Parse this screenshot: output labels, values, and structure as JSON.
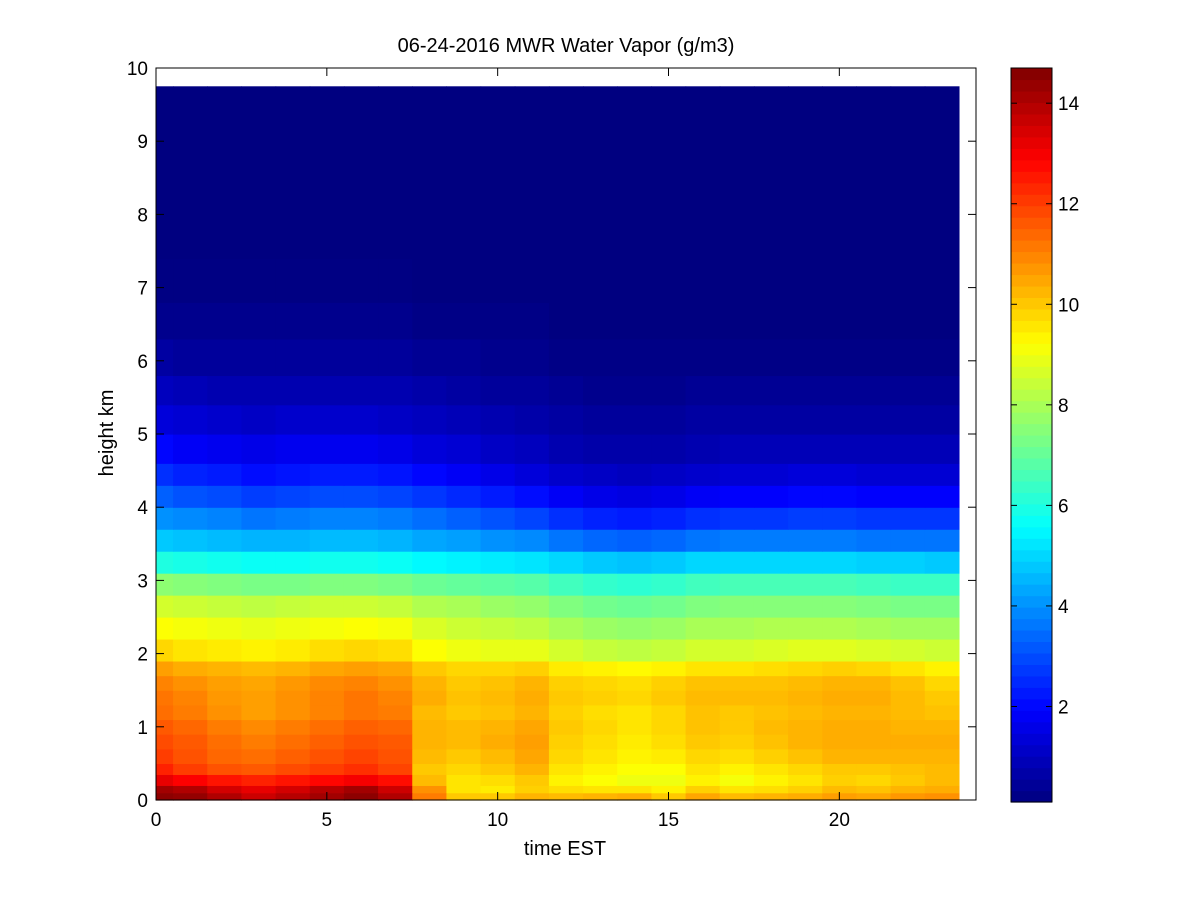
{
  "chart_data": {
    "type": "heatmap",
    "title": "06-24-2016 MWR Water Vapor (g/m3)",
    "xlabel": "time EST",
    "ylabel": "height km",
    "xlim": [
      0,
      24
    ],
    "ylim": [
      0,
      10
    ],
    "x_ticks": [
      0,
      5,
      10,
      15,
      20
    ],
    "y_ticks": [
      0,
      1,
      2,
      3,
      4,
      5,
      6,
      7,
      8,
      9,
      10
    ],
    "x_tick_labels": [
      "0",
      "5",
      "10",
      "15",
      "20"
    ],
    "y_tick_labels": [
      "0",
      "1",
      "2",
      "3",
      "4",
      "5",
      "6",
      "7",
      "8",
      "9",
      "10"
    ],
    "time_start_h": 0,
    "time_end_h": 23.5,
    "top_height_km": 9.75,
    "colormap": "jet",
    "colorbar": {
      "range": [
        0.1,
        14.7
      ],
      "ticks": [
        2,
        4,
        6,
        8,
        10,
        12,
        14
      ],
      "tick_labels": [
        "2",
        "4",
        "6",
        "8",
        "10",
        "12",
        "14"
      ],
      "placement": "right"
    },
    "x_times_h": [
      0.5,
      1.5,
      2.5,
      3.5,
      4.5,
      5.5,
      6.5,
      7.5,
      8.5,
      9.5,
      10.5,
      11.5,
      12.5,
      13.5,
      14.5,
      15.5,
      16.5,
      17.5,
      18.5,
      19.5,
      20.5,
      21.5,
      22.5,
      23.5
    ],
    "height_levels_km": [
      0,
      0.1,
      0.2,
      0.35,
      0.5,
      0.7,
      0.9,
      1.1,
      1.3,
      1.5,
      1.7,
      1.9,
      2.2,
      2.5,
      2.8,
      3.1,
      3.4,
      3.7,
      4.0,
      4.3,
      4.6,
      5.0,
      5.4,
      5.8,
      6.3,
      6.8,
      7.4,
      8.1,
      9.0,
      9.75
    ],
    "water_vapor_g_m3": [
      [
        14.5,
        14.4,
        14.0,
        13.6,
        13.9,
        14.2,
        14.5,
        14.0,
        11.1,
        10.0,
        10.0,
        10.3,
        10.2,
        10.3,
        10.4,
        10.0,
        10.5,
        10.2,
        10.3,
        10.4,
        10.6,
        10.5,
        10.7,
        10.8
      ],
      [
        14.2,
        14.0,
        13.5,
        13.2,
        13.5,
        13.9,
        14.2,
        13.6,
        10.8,
        9.6,
        9.5,
        9.9,
        9.7,
        9.6,
        9.6,
        9.4,
        9.9,
        9.6,
        9.7,
        9.9,
        10.2,
        10.1,
        10.3,
        10.4
      ],
      [
        13.2,
        12.9,
        12.6,
        12.4,
        12.6,
        12.8,
        13.0,
        12.7,
        10.2,
        9.6,
        9.7,
        10.0,
        9.4,
        9.2,
        9.0,
        9.0,
        9.4,
        9.1,
        9.4,
        9.6,
        9.9,
        9.8,
        10.0,
        10.2
      ],
      [
        12.4,
        12.0,
        11.7,
        11.6,
        11.8,
        12.0,
        12.2,
        11.9,
        10.0,
        9.8,
        10.0,
        10.3,
        9.6,
        9.4,
        9.2,
        9.2,
        9.6,
        9.4,
        9.6,
        9.8,
        10.0,
        10.0,
        10.1,
        10.2
      ],
      [
        12.0,
        11.7,
        11.4,
        11.3,
        11.5,
        11.7,
        11.9,
        11.7,
        10.2,
        10.0,
        10.2,
        10.5,
        9.8,
        9.6,
        9.4,
        9.5,
        9.8,
        9.7,
        9.9,
        10.1,
        10.3,
        10.3,
        10.3,
        10.3
      ],
      [
        11.8,
        11.6,
        11.3,
        11.1,
        11.3,
        11.5,
        11.7,
        11.6,
        10.3,
        10.2,
        10.4,
        10.6,
        9.9,
        9.7,
        9.5,
        9.7,
        10.0,
        9.9,
        10.1,
        10.3,
        10.4,
        10.4,
        10.4,
        10.4
      ],
      [
        11.6,
        11.4,
        11.1,
        10.9,
        11.1,
        11.3,
        11.5,
        11.4,
        10.3,
        10.2,
        10.3,
        10.5,
        10.0,
        9.8,
        9.6,
        9.8,
        10.1,
        10.0,
        10.2,
        10.3,
        10.4,
        10.4,
        10.3,
        10.3
      ],
      [
        11.3,
        11.1,
        10.8,
        10.6,
        10.8,
        11.0,
        11.2,
        11.1,
        10.2,
        10.0,
        10.1,
        10.3,
        9.9,
        9.7,
        9.6,
        9.8,
        10.1,
        10.0,
        10.1,
        10.2,
        10.3,
        10.3,
        10.2,
        10.1
      ],
      [
        11.2,
        11.0,
        10.7,
        10.6,
        10.8,
        11.0,
        11.2,
        11.0,
        10.4,
        10.1,
        10.2,
        10.4,
        10.0,
        9.9,
        9.8,
        10.0,
        10.2,
        10.2,
        10.2,
        10.3,
        10.4,
        10.4,
        10.2,
        10.0
      ],
      [
        11.0,
        10.8,
        10.6,
        10.5,
        10.7,
        10.9,
        11.0,
        10.8,
        10.3,
        10.0,
        10.1,
        10.3,
        9.9,
        9.8,
        9.7,
        9.9,
        10.1,
        10.1,
        10.1,
        10.2,
        10.3,
        10.3,
        10.1,
        9.8
      ],
      [
        10.6,
        10.4,
        10.3,
        10.2,
        10.3,
        10.5,
        10.6,
        10.5,
        10.0,
        9.8,
        9.8,
        9.9,
        9.5,
        9.4,
        9.3,
        9.4,
        9.6,
        9.6,
        9.7,
        9.8,
        9.9,
        9.8,
        9.6,
        9.4
      ],
      [
        9.8,
        9.6,
        9.5,
        9.4,
        9.5,
        9.7,
        9.8,
        9.7,
        9.2,
        9.0,
        8.9,
        8.9,
        8.6,
        8.4,
        8.3,
        8.4,
        8.6,
        8.6,
        8.7,
        8.8,
        8.8,
        8.7,
        8.6,
        8.5
      ],
      [
        9.2,
        9.1,
        9.0,
        8.9,
        9.0,
        9.1,
        9.2,
        9.1,
        8.7,
        8.5,
        8.4,
        8.3,
        8.0,
        7.8,
        7.7,
        7.8,
        8.0,
        8.0,
        8.1,
        8.1,
        8.1,
        8.0,
        7.9,
        7.9
      ],
      [
        8.6,
        8.5,
        8.4,
        8.3,
        8.4,
        8.5,
        8.5,
        8.4,
        8.1,
        8.0,
        7.8,
        7.7,
        7.4,
        7.2,
        7.1,
        7.2,
        7.4,
        7.5,
        7.5,
        7.5,
        7.5,
        7.4,
        7.3,
        7.3
      ],
      [
        7.6,
        7.5,
        7.4,
        7.3,
        7.3,
        7.4,
        7.4,
        7.3,
        7.1,
        7.0,
        6.9,
        6.8,
        6.5,
        6.3,
        6.2,
        6.3,
        6.5,
        6.6,
        6.6,
        6.6,
        6.6,
        6.5,
        6.4,
        6.4
      ],
      [
        6.0,
        5.9,
        5.8,
        5.7,
        5.7,
        5.8,
        5.8,
        5.7,
        5.5,
        5.4,
        5.3,
        5.2,
        5.0,
        4.8,
        4.7,
        4.8,
        5.0,
        5.0,
        5.0,
        5.0,
        5.0,
        4.9,
        4.9,
        4.8
      ],
      [
        4.8,
        4.7,
        4.6,
        4.5,
        4.5,
        4.6,
        4.6,
        4.5,
        4.3,
        4.2,
        4.0,
        3.9,
        3.6,
        3.4,
        3.3,
        3.4,
        3.6,
        3.7,
        3.7,
        3.7,
        3.7,
        3.6,
        3.6,
        3.6
      ],
      [
        4.0,
        3.9,
        3.8,
        3.6,
        3.7,
        3.8,
        3.8,
        3.7,
        3.5,
        3.3,
        3.1,
        2.9,
        2.6,
        2.4,
        2.3,
        2.4,
        2.6,
        2.7,
        2.7,
        2.8,
        2.8,
        2.7,
        2.7,
        2.7
      ],
      [
        3.3,
        3.1,
        3.0,
        2.8,
        2.9,
        3.0,
        3.0,
        2.9,
        2.7,
        2.5,
        2.3,
        2.1,
        1.8,
        1.6,
        1.5,
        1.6,
        1.8,
        1.9,
        1.9,
        2.0,
        2.0,
        1.9,
        1.9,
        1.9
      ],
      [
        2.6,
        2.4,
        2.3,
        2.1,
        2.2,
        2.3,
        2.3,
        2.2,
        2.0,
        1.8,
        1.6,
        1.4,
        1.2,
        1.1,
        1.0,
        1.1,
        1.2,
        1.3,
        1.3,
        1.4,
        1.4,
        1.3,
        1.3,
        1.3
      ],
      [
        2.0,
        1.8,
        1.7,
        1.6,
        1.7,
        1.7,
        1.7,
        1.6,
        1.4,
        1.3,
        1.1,
        1.0,
        0.8,
        0.7,
        0.7,
        0.7,
        0.8,
        0.9,
        0.9,
        0.9,
        0.9,
        0.9,
        0.9,
        0.9
      ],
      [
        1.4,
        1.3,
        1.2,
        1.1,
        1.2,
        1.2,
        1.2,
        1.1,
        1.0,
        0.9,
        0.8,
        0.7,
        0.6,
        0.5,
        0.5,
        0.5,
        0.6,
        0.6,
        0.6,
        0.6,
        0.6,
        0.6,
        0.6,
        0.6
      ],
      [
        1.0,
        0.9,
        0.8,
        0.8,
        0.8,
        0.8,
        0.8,
        0.8,
        0.7,
        0.6,
        0.5,
        0.5,
        0.4,
        0.3,
        0.3,
        0.3,
        0.4,
        0.4,
        0.4,
        0.4,
        0.4,
        0.4,
        0.4,
        0.4
      ],
      [
        0.6,
        0.5,
        0.5,
        0.5,
        0.5,
        0.5,
        0.5,
        0.5,
        0.4,
        0.4,
        0.3,
        0.3,
        0.2,
        0.2,
        0.2,
        0.2,
        0.2,
        0.2,
        0.2,
        0.2,
        0.2,
        0.2,
        0.2,
        0.2
      ],
      [
        0.3,
        0.3,
        0.3,
        0.3,
        0.3,
        0.3,
        0.3,
        0.3,
        0.2,
        0.2,
        0.2,
        0.2,
        0.1,
        0.1,
        0.1,
        0.1,
        0.1,
        0.1,
        0.1,
        0.1,
        0.1,
        0.1,
        0.1,
        0.1
      ],
      [
        0.15,
        0.15,
        0.15,
        0.15,
        0.15,
        0.15,
        0.15,
        0.15,
        0.1,
        0.1,
        0.1,
        0.1,
        0.1,
        0.1,
        0.1,
        0.1,
        0.1,
        0.1,
        0.1,
        0.1,
        0.1,
        0.1,
        0.1,
        0.1
      ],
      [
        0.1,
        0.1,
        0.1,
        0.1,
        0.1,
        0.1,
        0.1,
        0.1,
        0.1,
        0.1,
        0.1,
        0.1,
        0.1,
        0.1,
        0.1,
        0.1,
        0.1,
        0.1,
        0.1,
        0.1,
        0.1,
        0.1,
        0.1,
        0.1
      ],
      [
        0.1,
        0.1,
        0.1,
        0.1,
        0.1,
        0.1,
        0.1,
        0.1,
        0.1,
        0.1,
        0.1,
        0.1,
        0.1,
        0.1,
        0.1,
        0.1,
        0.1,
        0.1,
        0.1,
        0.1,
        0.1,
        0.1,
        0.1,
        0.1
      ],
      [
        0.1,
        0.1,
        0.1,
        0.1,
        0.1,
        0.1,
        0.1,
        0.1,
        0.1,
        0.1,
        0.1,
        0.1,
        0.1,
        0.1,
        0.1,
        0.1,
        0.1,
        0.1,
        0.1,
        0.1,
        0.1,
        0.1,
        0.1,
        0.1
      ]
    ]
  }
}
